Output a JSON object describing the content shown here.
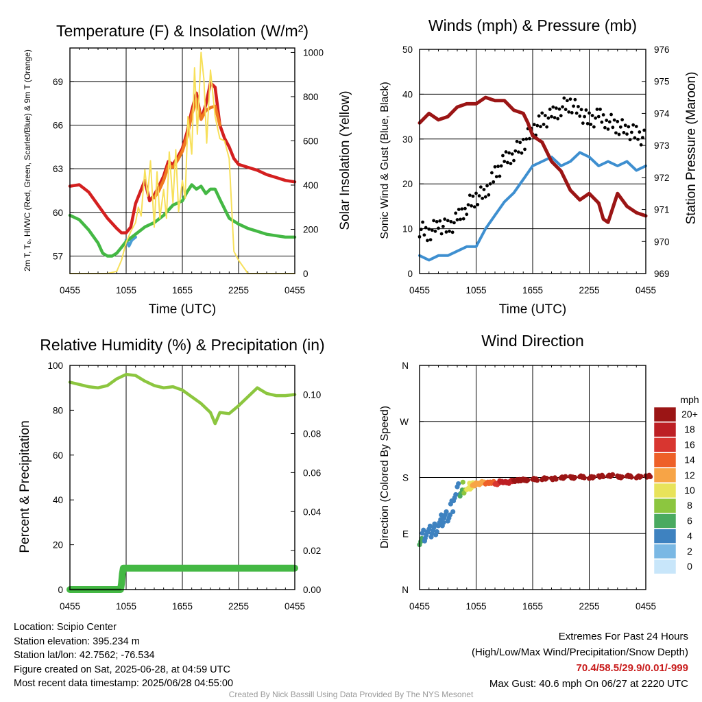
{
  "chart_data": [
    {
      "type": "line",
      "title": "Temperature (F) & Insolation (W/m²)",
      "xlabel": "Time (UTC)",
      "ylabel": "2m T, Tₑ, HI/WC (Red, Green, Scarlet/Blue) & 9m T (Orange)",
      "y2label": "Solar Insolation (Yellow)",
      "x_ticks": [
        "0455",
        "1055",
        "1655",
        "2255",
        "0455"
      ],
      "y_ticks": [
        57,
        60,
        63,
        66,
        69
      ],
      "y2_ticks": [
        0,
        200,
        400,
        600,
        800,
        1000
      ],
      "ylim": [
        55.8,
        71.3
      ],
      "y2lim": [
        0,
        1020
      ],
      "series": [
        {
          "color": "#d42020",
          "axis": "left",
          "x": [
            0,
            1,
            2,
            3,
            4,
            5,
            5.5,
            6,
            6.5,
            7,
            7.5,
            8,
            8.5,
            9,
            9.5,
            10,
            10.5,
            11,
            11.5,
            12,
            12.5,
            13,
            13.5,
            14,
            14.5,
            15,
            15.5,
            16,
            16.5,
            17,
            17.5,
            18,
            19,
            20,
            21,
            22,
            23,
            24
          ],
          "values": [
            61.8,
            61.9,
            61.4,
            60.5,
            59.6,
            58.9,
            58.6,
            58.6,
            59,
            60.6,
            61.4,
            62.2,
            60.8,
            61.2,
            61.8,
            62.5,
            63.5,
            63.3,
            63.8,
            64.4,
            65.5,
            67,
            68.2,
            66.4,
            67.4,
            68.9,
            68.6,
            66,
            65.1,
            64.5,
            63.7,
            63.3,
            63.1,
            62.9,
            62.6,
            62.4,
            62.2,
            62.1
          ]
        },
        {
          "color": "#f07a20",
          "axis": "left",
          "x": [
            9,
            9.5,
            10,
            10.5,
            11,
            11.5,
            12,
            12.5,
            13,
            13.5,
            14,
            14.5,
            15,
            15.5,
            16
          ],
          "values": [
            61,
            61.5,
            62.2,
            63.2,
            63.1,
            63.6,
            64.2,
            65.2,
            66.7,
            67.8,
            66.4,
            67,
            67.2,
            67.3,
            66
          ]
        },
        {
          "color": "#4a9ed4",
          "axis": "left",
          "x": [
            6,
            6.3,
            6.6,
            7
          ],
          "values": [
            58.1,
            57.7,
            58.1,
            58.3
          ]
        },
        {
          "color": "#44b844",
          "axis": "left",
          "x": [
            0,
            1,
            2,
            3,
            3.5,
            4,
            4.5,
            5,
            5.5,
            6,
            7,
            8,
            9,
            10,
            11,
            12,
            12.5,
            13,
            13.5,
            14,
            14.5,
            15,
            15.5,
            16,
            17,
            18,
            19,
            20,
            21,
            22,
            23,
            24
          ],
          "values": [
            59.8,
            59.5,
            58.8,
            57.9,
            57.2,
            57,
            57,
            57.2,
            57.6,
            58,
            58.5,
            59,
            59.3,
            59.8,
            60.5,
            60.8,
            61.4,
            61.9,
            61.6,
            61.8,
            61.3,
            61.6,
            61.6,
            60.9,
            59.6,
            59.2,
            58.9,
            58.7,
            58.5,
            58.4,
            58.3,
            58.3
          ]
        },
        {
          "color": "#f7e05a",
          "axis": "right",
          "x": [
            0,
            3,
            4,
            5,
            5.5,
            6,
            6.5,
            7,
            7.3,
            7.6,
            8,
            8.3,
            8.6,
            9,
            9.3,
            9.6,
            10,
            10.3,
            10.6,
            11,
            11.3,
            11.6,
            12,
            12.3,
            12.6,
            13,
            13.3,
            13.6,
            14,
            14.3,
            14.6,
            15,
            15.5,
            16,
            16.5,
            17,
            17.5,
            18,
            19,
            24
          ],
          "values": [
            0,
            0,
            0,
            10,
            60,
            140,
            190,
            230,
            300,
            260,
            470,
            350,
            510,
            210,
            460,
            250,
            380,
            250,
            550,
            320,
            560,
            280,
            420,
            340,
            710,
            540,
            930,
            630,
            1000,
            880,
            590,
            920,
            710,
            610,
            600,
            520,
            100,
            60,
            0,
            0
          ]
        }
      ]
    },
    {
      "type": "line",
      "title": "Winds (mph) & Pressure (mb)",
      "xlabel": "Time (UTC)",
      "ylabel": "Sonic Wind & Gust (Blue, Black)",
      "y2label": "Station Pressure (Maroon)",
      "x_ticks": [
        "0455",
        "1055",
        "1655",
        "2255",
        "0455"
      ],
      "y_ticks": [
        0,
        10,
        20,
        30,
        40,
        50
      ],
      "y2_ticks": [
        969,
        970,
        971,
        972,
        973,
        974,
        975,
        976
      ],
      "ylim": [
        0,
        50
      ],
      "y2lim": [
        969,
        976
      ],
      "series": [
        {
          "color": "#3e8fd0",
          "axis": "left",
          "x": [
            0,
            1,
            2,
            3,
            4,
            5,
            6,
            7,
            8,
            9,
            10,
            11,
            12,
            13,
            14,
            15,
            16,
            17,
            18,
            19,
            20,
            21,
            22,
            23,
            24
          ],
          "values": [
            4,
            3,
            4,
            4,
            5,
            6,
            6,
            10,
            13,
            16,
            18,
            21,
            24,
            25,
            26,
            24,
            25,
            27,
            26,
            24,
            25,
            24,
            25,
            23,
            24
          ]
        },
        {
          "color": "#000000",
          "axis": "left",
          "x": [
            0,
            1,
            2,
            3,
            4,
            5,
            6,
            7,
            8,
            9,
            10,
            11,
            12,
            13,
            14,
            15,
            16,
            17,
            18,
            19,
            20,
            21,
            22,
            23,
            24
          ],
          "values": [
            10,
            9,
            11,
            10,
            12,
            15,
            17,
            18,
            22,
            25,
            27,
            29,
            32,
            34,
            35,
            37,
            38,
            36,
            34,
            35,
            34,
            33,
            32,
            31,
            30
          ]
        },
        {
          "color": "#9b1515",
          "axis": "right",
          "x": [
            0,
            1,
            2,
            3,
            4,
            5,
            6,
            7,
            8,
            9,
            10,
            11,
            11.5,
            12,
            13,
            14,
            15,
            16,
            17,
            17.5,
            18,
            19,
            19.5,
            20,
            21,
            22,
            23,
            24
          ],
          "values": [
            973.7,
            974,
            973.8,
            973.9,
            974.2,
            974.3,
            974.3,
            974.5,
            974.4,
            974.4,
            974.1,
            974,
            973.7,
            973.3,
            973.1,
            972.5,
            972.2,
            971.6,
            971.3,
            971.4,
            971.5,
            971.2,
            970.7,
            970.6,
            971.5,
            971.1,
            970.9,
            970.8
          ]
        }
      ]
    },
    {
      "type": "line",
      "title": "Relative Humidity (%) & Precipitation (in)",
      "xlabel": "",
      "ylabel": "Percent & Precipitation",
      "x_ticks": [
        "0455",
        "1055",
        "1655",
        "2255",
        "0455"
      ],
      "y_ticks": [
        0,
        20,
        40,
        60,
        80,
        100
      ],
      "y2_ticks": [
        "0.00",
        "0.02",
        "0.04",
        "0.06",
        "0.08",
        "0.10"
      ],
      "ylim": [
        0,
        100
      ],
      "y2lim": [
        0,
        0.115
      ],
      "series": [
        {
          "color": "#8cc63f",
          "axis": "left",
          "x": [
            0,
            1,
            2,
            3,
            4,
            5,
            6,
            7,
            8,
            9,
            10,
            11,
            12,
            13,
            14,
            15,
            15.5,
            16,
            17,
            18,
            19,
            20,
            21,
            22,
            23,
            24
          ],
          "values": [
            92.5,
            91.5,
            90.5,
            90,
            91,
            94,
            96,
            95.5,
            93,
            91,
            90,
            90.5,
            89,
            86,
            83,
            79,
            74,
            79,
            78.5,
            82,
            86,
            90,
            87.5,
            86.5,
            86.5,
            87
          ]
        },
        {
          "color": "#44b844",
          "axis": "right",
          "x": [
            0,
            2,
            4,
            5.4,
            5.5,
            5.6,
            5.7,
            8,
            12,
            16,
            20,
            24
          ],
          "values": [
            0,
            0,
            0,
            0,
            0.003,
            0.008,
            0.011,
            0.011,
            0.011,
            0.011,
            0.011,
            0.011
          ]
        }
      ]
    },
    {
      "type": "scatter",
      "title": "Wind Direction",
      "xlabel": "",
      "ylabel": "Direction (Colored By Speed)",
      "x_ticks": [
        "0455",
        "1055",
        "1655",
        "2255",
        "0455"
      ],
      "y_ticks": [
        "N",
        "E",
        "S",
        "W",
        "N"
      ],
      "ylim": [
        0,
        360
      ],
      "legend_title": "mph",
      "legend_labels": [
        "20+",
        "18",
        "16",
        "14",
        "12",
        "10",
        "8",
        "6",
        "4",
        "2",
        "0"
      ],
      "legend_colors": [
        "#9b1515",
        "#bd1f24",
        "#d83630",
        "#ee6028",
        "#f7a446",
        "#e8e35a",
        "#8cc63f",
        "#4aaa60",
        "#3e82c0",
        "#7ab8e4",
        "#c8e6fa"
      ],
      "x": [
        0,
        0.3,
        0.6,
        1,
        1.3,
        1.6,
        2,
        2.3,
        2.6,
        3,
        3.3,
        3.6,
        4,
        4.3,
        4.6,
        5,
        5.3,
        5.6,
        6,
        6.5,
        7,
        7.5,
        8,
        8.5,
        9,
        9.5,
        10,
        10.5,
        11,
        12,
        13,
        14,
        15,
        16,
        17,
        18,
        19,
        20,
        21,
        22,
        23,
        24
      ],
      "values": [
        82,
        88,
        90,
        92,
        95,
        98,
        105,
        110,
        115,
        120,
        135,
        150,
        160,
        155,
        165,
        162,
        170,
        168,
        170,
        172,
        171,
        172,
        170,
        173,
        172,
        174,
        175,
        176,
        176,
        177,
        178,
        178,
        180,
        180,
        181,
        180,
        182,
        183,
        181,
        182,
        181,
        182
      ],
      "speeds": [
        6,
        4,
        4,
        3,
        4,
        3,
        4,
        3,
        3,
        4,
        4,
        4,
        4,
        5,
        7,
        9,
        10,
        11,
        12,
        11,
        14,
        13,
        15,
        17,
        17,
        18,
        20,
        20,
        20,
        20,
        20,
        20,
        20,
        20,
        20,
        20,
        20,
        20,
        20,
        20,
        20,
        20
      ]
    }
  ],
  "info": {
    "location": "Location: Scipio Center",
    "elevation": "Station elevation: 395.234 m",
    "latlon": "Station lat/lon: 42.7562; -76.534",
    "created": "Figure created on Sat, 2025-06-28, at 04:59 UTC",
    "recent": "Most recent data timestamp: 2025/06/28 04:55:00"
  },
  "extremes": {
    "title": "Extremes For Past 24 Hours",
    "subtitle": "(High/Low/Max Wind/Precipitation/Snow Depth)",
    "values": "70.4/58.5/29.9/0.01/-999",
    "gust": "Max Gust: 40.6 mph On 06/27 at 2220 UTC"
  },
  "credit": "Created By Nick Bassill Using Data Provided By The NYS Mesonet"
}
